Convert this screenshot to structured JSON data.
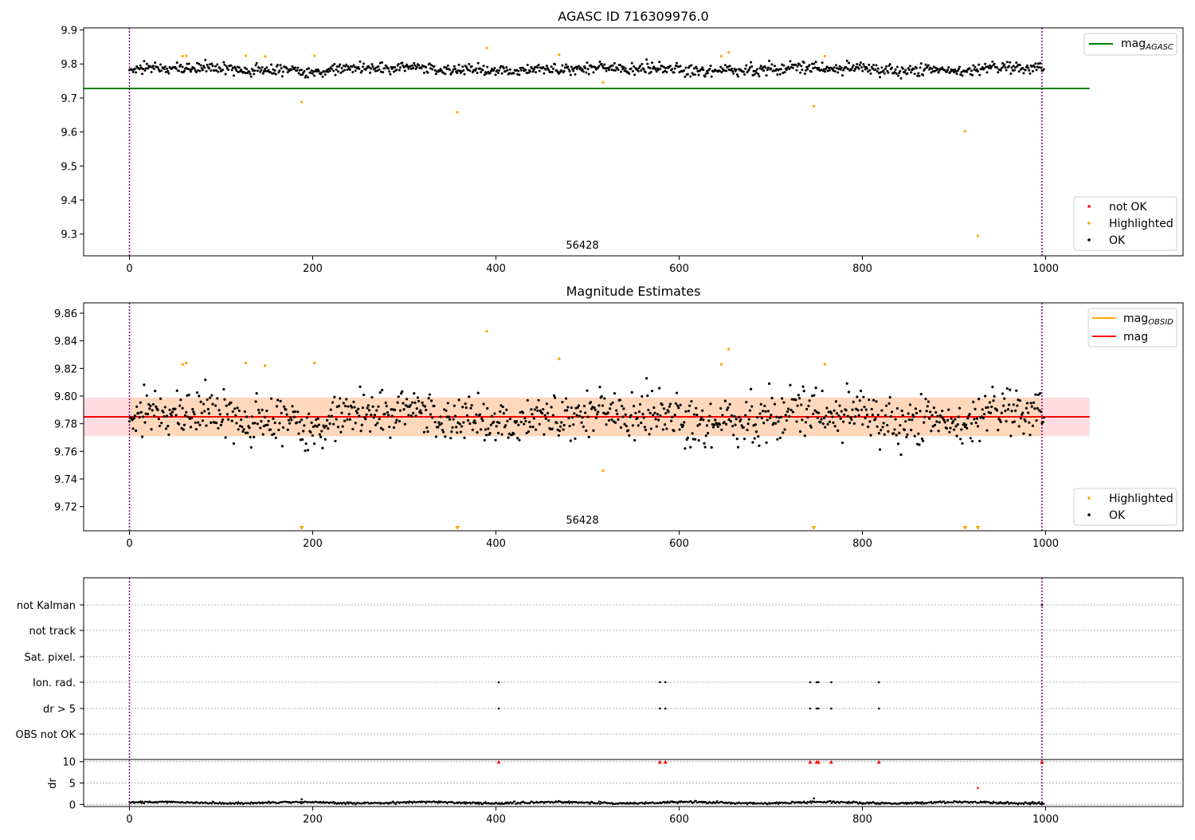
{
  "chart_data": [
    {
      "type": "scatter",
      "title": "AGASC ID 716309976.0",
      "obsid_label": "56428",
      "xlim": [
        -50,
        1150
      ],
      "ylim": [
        9.236,
        9.906
      ],
      "xticks": [
        0,
        200,
        400,
        600,
        800,
        1000
      ],
      "yticks": [
        9.3,
        9.4,
        9.5,
        9.6,
        9.7,
        9.8,
        9.9
      ],
      "x_range": [
        0,
        998
      ],
      "n_points": 1000,
      "ok_level": 9.785,
      "ok_spread": 0.011,
      "obs_boundaries": [
        0,
        996
      ],
      "mag_agasc": 9.728,
      "mag_agasc_xrange": [
        -50,
        1048
      ],
      "colors": {
        "ok": "#000000",
        "highlighted": "#ffa500",
        "not_ok": "#ff0000",
        "mag_agasc": "#008000",
        "boundary": "#800080"
      },
      "highlighted": [
        [
          58,
          9.823
        ],
        [
          62,
          9.824
        ],
        [
          127,
          9.824
        ],
        [
          148,
          9.822
        ],
        [
          188,
          9.688
        ],
        [
          202,
          9.824
        ],
        [
          358,
          9.658
        ],
        [
          390,
          9.847
        ],
        [
          469,
          9.827
        ],
        [
          517,
          9.746
        ],
        [
          646,
          9.823
        ],
        [
          654,
          9.834
        ],
        [
          747,
          9.676
        ],
        [
          759,
          9.823
        ],
        [
          912,
          9.602
        ],
        [
          926,
          9.295
        ]
      ],
      "legend_line": {
        "label": "mag",
        "sub": "AGASC"
      },
      "legend_markers": [
        "not OK",
        "Highlighted",
        "OK"
      ]
    },
    {
      "type": "scatter",
      "title": "Magnitude Estimates",
      "obsid_label": "56428",
      "xlim": [
        -50,
        1150
      ],
      "ylim": [
        9.7025,
        9.8675
      ],
      "xticks": [
        0,
        200,
        400,
        600,
        800,
        1000
      ],
      "yticks": [
        9.72,
        9.74,
        9.76,
        9.78,
        9.8,
        9.82,
        9.84,
        9.86
      ],
      "mag": 9.785,
      "mag_band": [
        9.771,
        9.799
      ],
      "mag_obsid_band": [
        9.771,
        9.799
      ],
      "band_xrange": [
        -50,
        1048
      ],
      "colors": {
        "mag": "#ff0000",
        "mag_obsid": "#ffa500",
        "band": "#ffc0cb",
        "band_obsid": "#ffd7b5"
      },
      "below_axis_highlighted_x": [
        188,
        358,
        747,
        912,
        926
      ],
      "legend_line": [
        {
          "label": "mag",
          "sub": "OBSID"
        },
        {
          "label": "mag",
          "sub": ""
        }
      ],
      "legend_markers": [
        "Highlighted",
        "OK"
      ]
    },
    {
      "type": "scatter",
      "flag_rows": [
        "not Kalman",
        "not track",
        "Sat. pixel.",
        "Ion. rad.",
        "dr > 5",
        "OBS not OK"
      ],
      "flag_points": {
        "Ion. rad.": [
          403,
          579,
          585,
          743,
          750,
          752,
          766,
          818
        ],
        "dr > 5": [
          403,
          579,
          585,
          743,
          750,
          752,
          766,
          818
        ],
        "not Kalman": [
          996
        ]
      },
      "dr": {
        "ylabel": "dr",
        "ylim": [
          -0.5,
          10.5
        ],
        "yticks": [
          0,
          5,
          10
        ],
        "typical_level": 0.4,
        "high_points": [
          [
            403,
            9.9
          ],
          [
            579,
            9.9
          ],
          [
            585,
            9.9
          ],
          [
            743,
            9.9
          ],
          [
            750,
            9.9
          ],
          [
            752,
            9.9
          ],
          [
            766,
            9.9
          ],
          [
            818,
            9.9
          ],
          [
            996,
            9.9
          ]
        ],
        "outliers": [
          [
            188,
            1.2
          ],
          [
            926,
            3.8
          ],
          [
            747,
            1.4
          ]
        ]
      },
      "xlim": [
        -50,
        1150
      ],
      "xticks": [
        0,
        200,
        400,
        600,
        800,
        1000
      ]
    }
  ]
}
